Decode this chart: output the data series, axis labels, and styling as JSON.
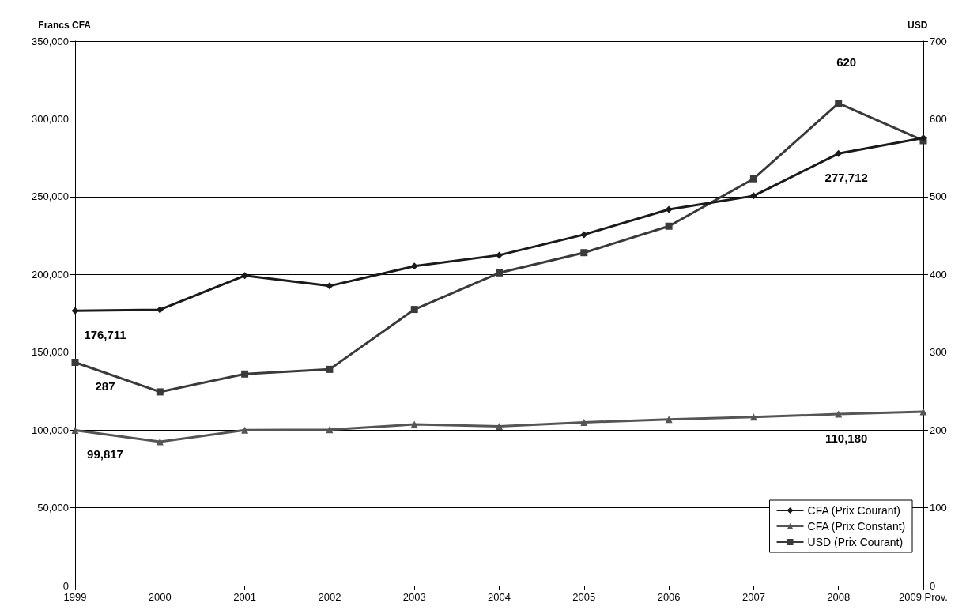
{
  "chart_data": {
    "type": "line",
    "ylabel": "Francs CFA",
    "y2label": "USD",
    "categories": [
      "1999",
      "2000",
      "2001",
      "2002",
      "2003",
      "2004",
      "2005",
      "2006",
      "2007",
      "2008",
      "2009 Prov."
    ],
    "series": [
      {
        "name": "CFA (Prix Courant)",
        "color": "#1a1a1a",
        "marker": "diamond",
        "values": [
          176711,
          177300,
          199200,
          192600,
          205300,
          212400,
          225600,
          241800,
          250500,
          277712,
          287800
        ],
        "value_labels": [
          "176,711",
          null,
          null,
          null,
          null,
          null,
          null,
          null,
          null,
          "277,712",
          null
        ]
      },
      {
        "name": "CFA (Prix Constant)",
        "color": "#555555",
        "marker": "triangle",
        "values": [
          99817,
          92400,
          99900,
          100200,
          103600,
          102300,
          104900,
          106800,
          108300,
          110180,
          111700
        ],
        "value_labels": [
          "99,817",
          null,
          null,
          null,
          null,
          null,
          null,
          null,
          null,
          "110,180",
          null
        ]
      },
      {
        "name": "USD (Prix Courant)",
        "color": "#3a3a3a",
        "marker": "square",
        "axis": "y2",
        "values": [
          287,
          249,
          272,
          278,
          355,
          402,
          428,
          462,
          523,
          620,
          572
        ],
        "value_labels": [
          "287",
          null,
          null,
          null,
          null,
          null,
          null,
          null,
          null,
          "620",
          null
        ]
      }
    ],
    "ylim": [
      0,
      350000
    ],
    "yticks": [
      {
        "value": 0,
        "label": "0"
      },
      {
        "value": 50000,
        "label": "50,000"
      },
      {
        "value": 100000,
        "label": "100,000"
      },
      {
        "value": 150000,
        "label": "150,000"
      },
      {
        "value": 200000,
        "label": "200,000"
      },
      {
        "value": 250000,
        "label": "250,000"
      },
      {
        "value": 300000,
        "label": "300,000"
      },
      {
        "value": 350000,
        "label": "350,000"
      }
    ],
    "y2lim": [
      0,
      700
    ],
    "y2ticks": [
      0,
      100,
      200,
      300,
      400,
      500,
      600,
      700
    ],
    "grid": "y",
    "legend": "bottom right",
    "line_style": "solid"
  }
}
